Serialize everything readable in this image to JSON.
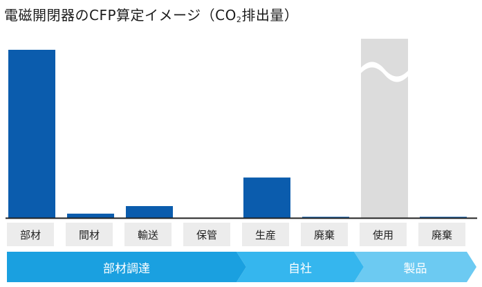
{
  "title": {
    "main": "電磁開閉器のCFP算定イメージ（CO",
    "sub": "2",
    "tail": "排出量）"
  },
  "chart_data": {
    "type": "bar",
    "title": "電磁開閉器のCFP算定イメージ（CO₂排出量）",
    "categories": [
      "部材",
      "間材",
      "輸送",
      "保管",
      "生産",
      "廃棄",
      "使用",
      "廃棄"
    ],
    "values": [
      100,
      2.5,
      7,
      0,
      24,
      0.6,
      105,
      0.2
    ],
    "broken_bar_index": 6,
    "ylim": [
      0,
      100
    ],
    "xlabel": "",
    "ylabel": "",
    "grid": false
  },
  "colors": {
    "bar": "#0b5cad",
    "use_bar": "#dcdcdc",
    "stage1": "#1aa0e0",
    "stage2": "#35b6ee",
    "stage3": "#6ccaf2"
  },
  "stages": [
    {
      "label": "部材調達"
    },
    {
      "label": "自社"
    },
    {
      "label": "製品"
    }
  ]
}
